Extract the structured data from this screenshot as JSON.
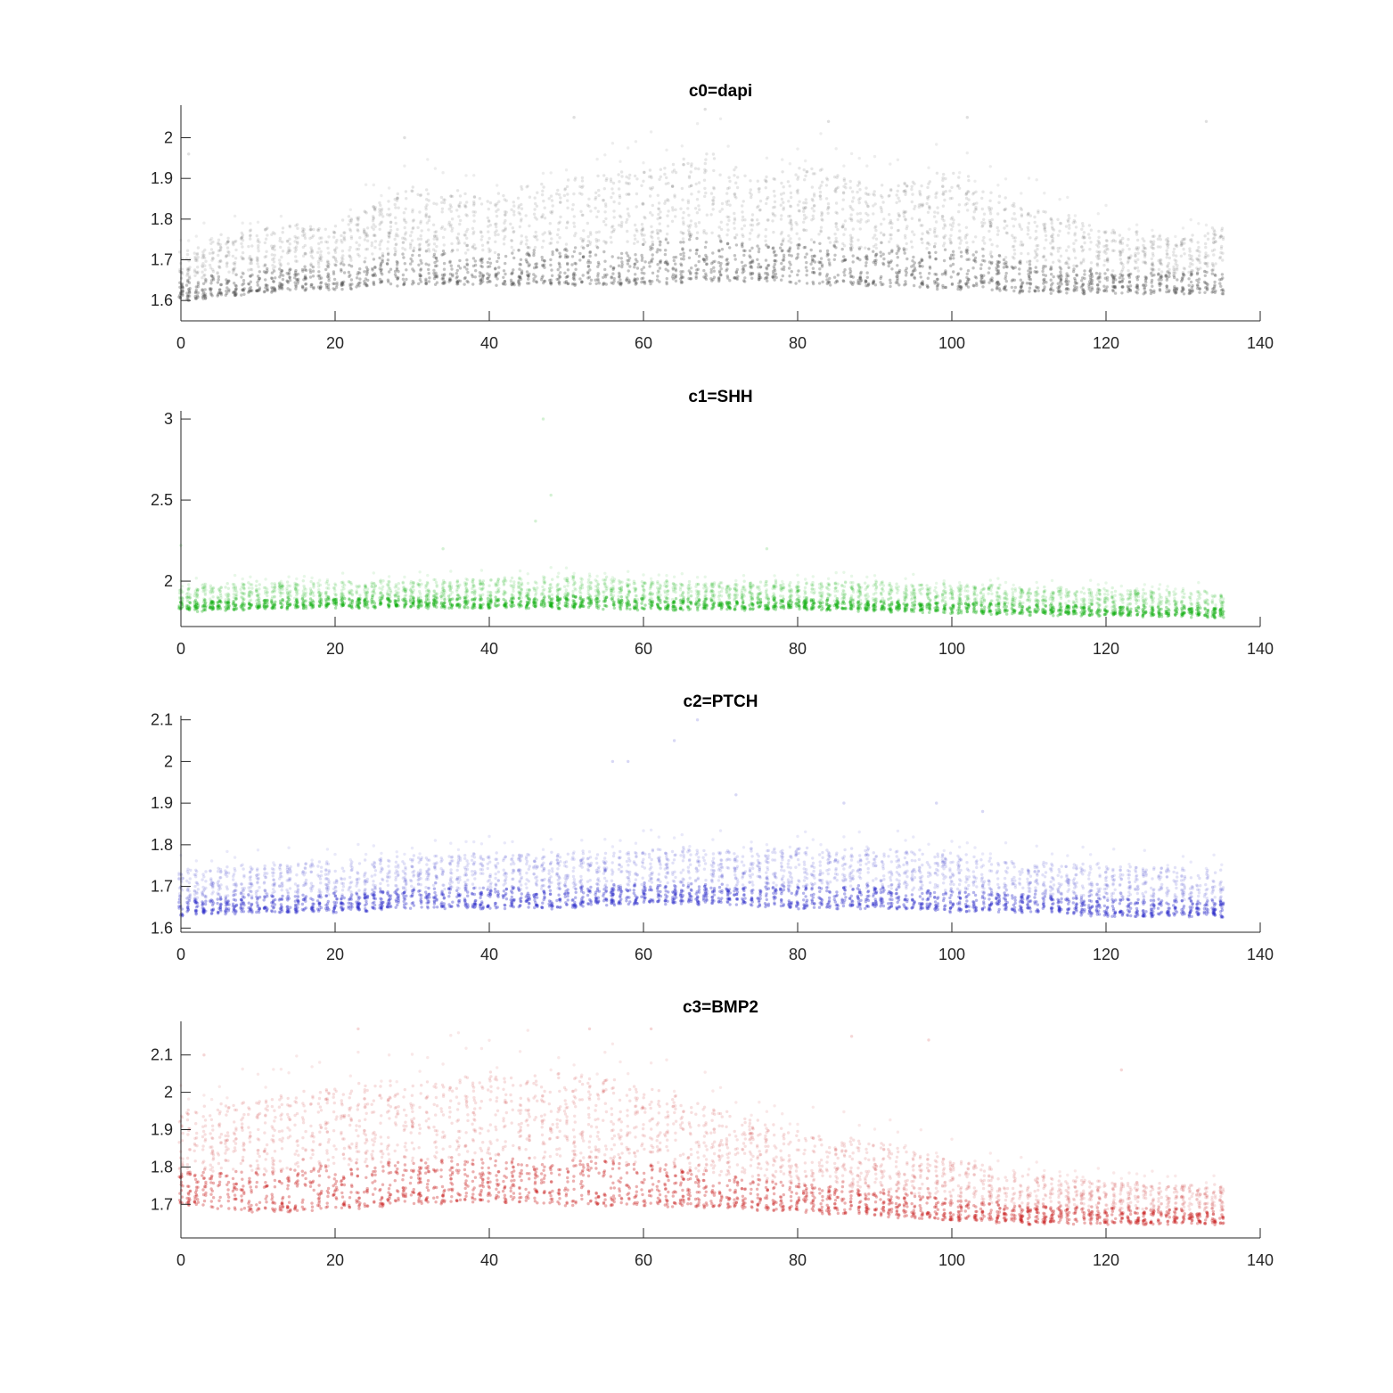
{
  "chart_data": [
    {
      "type": "scatter",
      "title": "c0=dapi",
      "color": "#505050",
      "xlim": [
        0,
        140
      ],
      "ylim": [
        1.55,
        2.08
      ],
      "xticks": [
        0,
        20,
        40,
        60,
        80,
        100,
        120,
        140
      ],
      "yticks": [
        1.6,
        1.7,
        1.8,
        1.9,
        2
      ],
      "x_range": [
        0,
        135
      ],
      "profile": [
        [
          0,
          1.6,
          1.72
        ],
        [
          5,
          1.61,
          1.76
        ],
        [
          10,
          1.62,
          1.78
        ],
        [
          20,
          1.63,
          1.79
        ],
        [
          30,
          1.64,
          1.88
        ],
        [
          40,
          1.64,
          1.86
        ],
        [
          50,
          1.64,
          1.9
        ],
        [
          60,
          1.64,
          1.92
        ],
        [
          68,
          1.65,
          1.97
        ],
        [
          75,
          1.65,
          1.9
        ],
        [
          82,
          1.64,
          1.93
        ],
        [
          90,
          1.64,
          1.88
        ],
        [
          100,
          1.63,
          1.92
        ],
        [
          110,
          1.62,
          1.83
        ],
        [
          120,
          1.62,
          1.78
        ],
        [
          130,
          1.62,
          1.75
        ],
        [
          135,
          1.62,
          1.79
        ]
      ],
      "outliers": [
        [
          68,
          2.07
        ],
        [
          84,
          2.04
        ],
        [
          102,
          2.05
        ],
        [
          133,
          2.04
        ],
        [
          51,
          2.05
        ],
        [
          29,
          2.0
        ],
        [
          1,
          1.96
        ]
      ]
    },
    {
      "type": "scatter",
      "title": "c1=SHH",
      "color": "#10b010",
      "xlim": [
        0,
        140
      ],
      "ylim": [
        1.72,
        3.05
      ],
      "xticks": [
        0,
        20,
        40,
        60,
        80,
        100,
        120,
        140
      ],
      "yticks": [
        2,
        2.5,
        3
      ],
      "x_range": [
        0,
        135
      ],
      "profile": [
        [
          0,
          1.82,
          1.97
        ],
        [
          10,
          1.83,
          1.99
        ],
        [
          20,
          1.84,
          2.0
        ],
        [
          30,
          1.84,
          2.0
        ],
        [
          40,
          1.84,
          2.01
        ],
        [
          50,
          1.84,
          2.03
        ],
        [
          60,
          1.83,
          2.0
        ],
        [
          70,
          1.83,
          1.99
        ],
        [
          80,
          1.83,
          2.0
        ],
        [
          90,
          1.82,
          1.99
        ],
        [
          100,
          1.81,
          1.98
        ],
        [
          110,
          1.8,
          1.96
        ],
        [
          120,
          1.79,
          1.95
        ],
        [
          135,
          1.78,
          1.94
        ]
      ],
      "outliers": [
        [
          47,
          3.0
        ],
        [
          48,
          2.53
        ],
        [
          46,
          2.37
        ],
        [
          76,
          2.2
        ],
        [
          34,
          2.2
        ],
        [
          0,
          2.22
        ]
      ]
    },
    {
      "type": "scatter",
      "title": "c2=PTCH",
      "color": "#2828c8",
      "xlim": [
        0,
        140
      ],
      "ylim": [
        1.59,
        2.11
      ],
      "xticks": [
        0,
        20,
        40,
        60,
        80,
        100,
        120,
        140
      ],
      "yticks": [
        1.6,
        1.7,
        1.8,
        1.9,
        2,
        2.1
      ],
      "x_range": [
        0,
        135
      ],
      "profile": [
        [
          0,
          1.63,
          1.74
        ],
        [
          10,
          1.64,
          1.75
        ],
        [
          20,
          1.64,
          1.76
        ],
        [
          30,
          1.65,
          1.77
        ],
        [
          40,
          1.65,
          1.78
        ],
        [
          50,
          1.65,
          1.78
        ],
        [
          60,
          1.66,
          1.79
        ],
        [
          70,
          1.66,
          1.79
        ],
        [
          80,
          1.65,
          1.79
        ],
        [
          90,
          1.65,
          1.79
        ],
        [
          100,
          1.64,
          1.78
        ],
        [
          110,
          1.64,
          1.76
        ],
        [
          120,
          1.63,
          1.75
        ],
        [
          135,
          1.63,
          1.74
        ]
      ],
      "outliers": [
        [
          67,
          2.1
        ],
        [
          64,
          2.05
        ],
        [
          56,
          2.0
        ],
        [
          58,
          2.0
        ],
        [
          72,
          1.92
        ],
        [
          98,
          1.9
        ],
        [
          104,
          1.88
        ],
        [
          86,
          1.9
        ]
      ]
    },
    {
      "type": "scatter",
      "title": "c3=BMP2",
      "color": "#c81e1e",
      "xlim": [
        0,
        140
      ],
      "ylim": [
        1.61,
        2.19
      ],
      "xticks": [
        0,
        20,
        40,
        60,
        80,
        100,
        120,
        140
      ],
      "yticks": [
        1.7,
        1.8,
        1.9,
        2,
        2.1
      ],
      "x_range": [
        0,
        135
      ],
      "profile": [
        [
          0,
          1.7,
          1.95
        ],
        [
          10,
          1.68,
          1.98
        ],
        [
          20,
          1.69,
          2.02
        ],
        [
          30,
          1.7,
          2.03
        ],
        [
          40,
          1.71,
          2.05
        ],
        [
          50,
          1.7,
          2.05
        ],
        [
          60,
          1.7,
          2.02
        ],
        [
          70,
          1.69,
          1.95
        ],
        [
          80,
          1.68,
          1.9
        ],
        [
          90,
          1.67,
          1.87
        ],
        [
          100,
          1.66,
          1.82
        ],
        [
          110,
          1.65,
          1.78
        ],
        [
          120,
          1.65,
          1.76
        ],
        [
          135,
          1.65,
          1.75
        ]
      ],
      "outliers": [
        [
          23,
          2.17
        ],
        [
          53,
          2.17
        ],
        [
          61,
          2.17
        ],
        [
          87,
          2.15
        ],
        [
          97,
          2.14
        ],
        [
          3,
          2.1
        ],
        [
          122,
          2.06
        ]
      ]
    }
  ]
}
